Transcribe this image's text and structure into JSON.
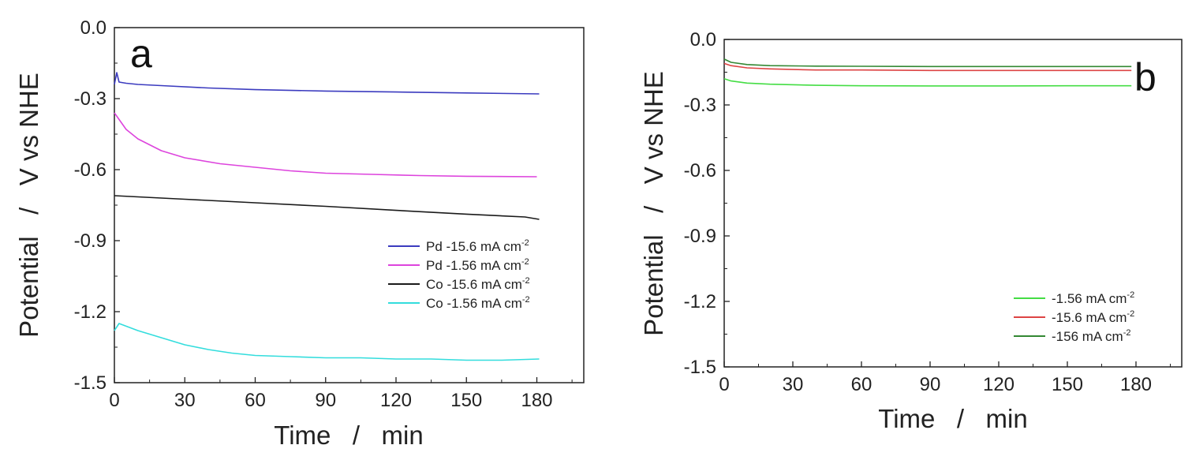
{
  "chart_data": [
    {
      "type": "line",
      "panel_label": "a",
      "xlabel": "Time   /   min",
      "ylabel": "Potential   /   V vs NHE",
      "xlim": [
        0,
        200
      ],
      "ylim": [
        -1.5,
        0.0
      ],
      "xticks": [
        0,
        30,
        60,
        90,
        120,
        150,
        180
      ],
      "xtick_labels": [
        "0",
        "30",
        "60",
        "90",
        "120",
        "150",
        "180"
      ],
      "yticks": [
        0.0,
        -0.3,
        -0.6,
        -0.9,
        -1.2,
        -1.5
      ],
      "ytick_labels": [
        "0.0",
        "-0.3",
        "-0.6",
        "-0.9",
        "-1.2",
        "-1.5"
      ],
      "legend_position": "lower-right",
      "series": [
        {
          "name": "Pd -15.6 mA cm",
          "sup": "-2",
          "color": "#3b3bbf",
          "x": [
            0,
            1,
            2,
            5,
            10,
            20,
            40,
            60,
            90,
            120,
            150,
            181
          ],
          "y": [
            -0.24,
            -0.19,
            -0.23,
            -0.235,
            -0.24,
            -0.245,
            -0.255,
            -0.262,
            -0.268,
            -0.272,
            -0.276,
            -0.28
          ]
        },
        {
          "name": "Pd -1.56 mA cm",
          "sup": "-2",
          "color": "#dd44dd",
          "x": [
            0,
            5,
            10,
            20,
            30,
            45,
            60,
            75,
            90,
            110,
            130,
            150,
            180
          ],
          "y": [
            -0.36,
            -0.43,
            -0.47,
            -0.52,
            -0.55,
            -0.575,
            -0.59,
            -0.605,
            -0.615,
            -0.62,
            -0.625,
            -0.628,
            -0.63
          ]
        },
        {
          "name": "Co -15.6 mA cm",
          "sup": "-2",
          "color": "#1a1a1a",
          "x": [
            0,
            30,
            60,
            90,
            120,
            150,
            175,
            181
          ],
          "y": [
            -0.71,
            -0.725,
            -0.74,
            -0.755,
            -0.772,
            -0.788,
            -0.8,
            -0.81
          ]
        },
        {
          "name": "Co -1.56 mA cm",
          "sup": "-2",
          "color": "#33dddd",
          "x": [
            0,
            2,
            10,
            20,
            30,
            40,
            50,
            60,
            75,
            90,
            105,
            120,
            135,
            150,
            165,
            181
          ],
          "y": [
            -1.28,
            -1.25,
            -1.28,
            -1.31,
            -1.34,
            -1.36,
            -1.375,
            -1.385,
            -1.39,
            -1.395,
            -1.395,
            -1.4,
            -1.4,
            -1.405,
            -1.405,
            -1.4
          ]
        }
      ]
    },
    {
      "type": "line",
      "panel_label": "b",
      "xlabel": "Time   /   min",
      "ylabel": "Potential   /   V vs NHE",
      "xlim": [
        0,
        200
      ],
      "ylim": [
        -1.5,
        0.0
      ],
      "xticks": [
        0,
        30,
        60,
        90,
        120,
        150,
        180
      ],
      "xtick_labels": [
        "0",
        "30",
        "60",
        "90",
        "120",
        "150",
        "180"
      ],
      "yticks": [
        0.0,
        -0.3,
        -0.6,
        -0.9,
        -1.2,
        -1.5
      ],
      "ytick_labels": [
        "0.0",
        "-0.3",
        "-0.6",
        "-0.9",
        "-1.2",
        "-1.5"
      ],
      "legend_position": "lower-right",
      "series": [
        {
          "name": "-1.56 mA cm",
          "sup": "-2",
          "color": "#44dd44",
          "x": [
            0,
            3,
            10,
            20,
            40,
            60,
            90,
            120,
            150,
            178
          ],
          "y": [
            -0.18,
            -0.19,
            -0.2,
            -0.205,
            -0.21,
            -0.212,
            -0.213,
            -0.213,
            -0.212,
            -0.212
          ]
        },
        {
          "name": "-15.6 mA cm",
          "sup": "-2",
          "color": "#dd4444",
          "x": [
            0,
            3,
            10,
            20,
            40,
            60,
            90,
            120,
            150,
            178
          ],
          "y": [
            -0.11,
            -0.12,
            -0.13,
            -0.135,
            -0.14,
            -0.14,
            -0.142,
            -0.142,
            -0.142,
            -0.142
          ]
        },
        {
          "name": "-156 mA cm",
          "sup": "-2",
          "color": "#338833",
          "x": [
            0,
            3,
            10,
            20,
            40,
            60,
            90,
            120,
            150,
            178
          ],
          "y": [
            -0.09,
            -0.105,
            -0.115,
            -0.12,
            -0.122,
            -0.123,
            -0.124,
            -0.124,
            -0.124,
            -0.124
          ]
        }
      ]
    }
  ]
}
